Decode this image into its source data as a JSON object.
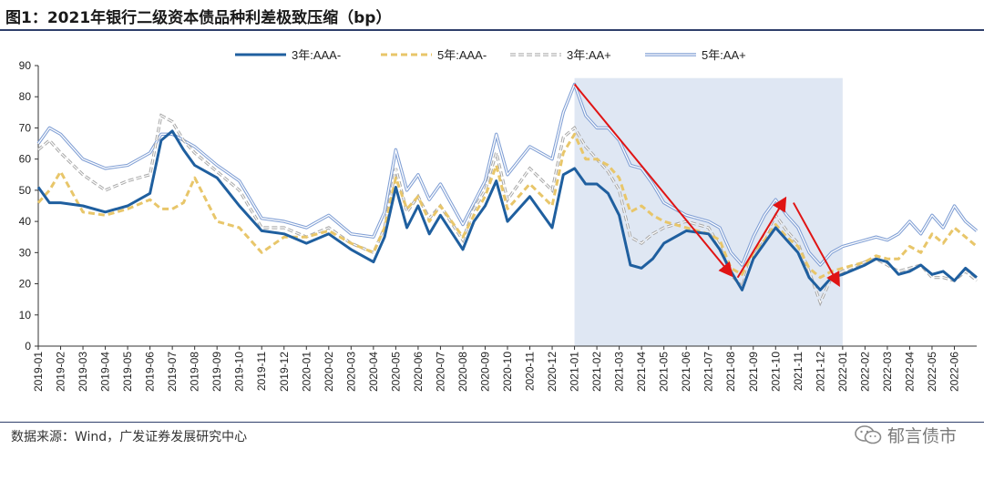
{
  "figure": {
    "title": "图1：2021年银行二级资本债品种利差极致压缩（bp）",
    "source": "数据来源：Wind，广发证券发展研究中心",
    "watermark": "郁言债市"
  },
  "chart_data": {
    "type": "line",
    "title": "2021年银行二级资本债品种利差极致压缩（bp）",
    "xlabel": "",
    "ylabel": "",
    "ylim": [
      0,
      90
    ],
    "yticks": [
      0,
      10,
      20,
      30,
      40,
      50,
      60,
      70,
      80,
      90
    ],
    "x_range_months": [
      0,
      42
    ],
    "categories": [
      "2019-01",
      "2019-02",
      "2019-03",
      "2019-04",
      "2019-05",
      "2019-06",
      "2019-07",
      "2019-08",
      "2019-09",
      "2019-10",
      "2019-11",
      "2019-12",
      "2020-01",
      "2020-02",
      "2020-03",
      "2020-04",
      "2020-05",
      "2020-06",
      "2020-07",
      "2020-08",
      "2020-09",
      "2020-10",
      "2020-11",
      "2020-12",
      "2021-01",
      "2021-02",
      "2021-03",
      "2021-04",
      "2021-05",
      "2021-06",
      "2021-07",
      "2021-08",
      "2021-09",
      "2021-10",
      "2021-11",
      "2021-12",
      "2022-01",
      "2022-02",
      "2022-03",
      "2022-04",
      "2022-05",
      "2022-06"
    ],
    "legend": {
      "position": "top-right"
    },
    "series": [
      {
        "name": "3年:AAA-",
        "color": "#1f5f9f",
        "style": "solid-thick",
        "x": [
          0,
          0.5,
          1,
          2,
          3,
          4,
          5,
          5.5,
          6,
          6.5,
          7,
          8,
          9,
          10,
          11,
          12,
          13,
          14,
          15,
          15.5,
          16,
          16.5,
          17,
          17.5,
          18,
          19,
          19.5,
          20,
          20.5,
          21,
          22,
          23,
          23.5,
          24,
          24.5,
          25,
          25.5,
          26,
          26.5,
          27,
          27.5,
          28,
          29,
          30,
          30.5,
          31,
          31.5,
          32,
          32.5,
          33,
          33.5,
          34,
          34.5,
          35,
          35.5,
          36,
          37,
          37.5,
          38,
          38.5,
          39,
          39.5,
          40,
          40.5,
          41,
          41.5,
          42
        ],
        "y": [
          51,
          46,
          46,
          45,
          43,
          45,
          49,
          66,
          69,
          63,
          58,
          54,
          45,
          37,
          36,
          33,
          36,
          31,
          27,
          35,
          51,
          38,
          45,
          36,
          42,
          31,
          40,
          45,
          53,
          40,
          48,
          38,
          55,
          57,
          52,
          52,
          49,
          42,
          26,
          25,
          28,
          33,
          37,
          36,
          31,
          24,
          18,
          28,
          33,
          38,
          34,
          30,
          22,
          18,
          22,
          23,
          26,
          28,
          27,
          23,
          24,
          26,
          23,
          24,
          21,
          25,
          22
        ]
      },
      {
        "name": "5年:AAA-",
        "color": "#e8c66a",
        "style": "dashed",
        "x": [
          0,
          0.5,
          1,
          2,
          3,
          4,
          5,
          5.5,
          6,
          6.5,
          7,
          8,
          9,
          10,
          11,
          12,
          13,
          14,
          15,
          15.5,
          16,
          16.5,
          17,
          17.5,
          18,
          19,
          19.5,
          20,
          20.5,
          21,
          22,
          23,
          23.5,
          24,
          24.5,
          25,
          25.5,
          26,
          26.5,
          27,
          27.5,
          28,
          29,
          30,
          30.5,
          31,
          31.5,
          32,
          32.5,
          33,
          33.5,
          34,
          34.5,
          35,
          35.5,
          36,
          37,
          37.5,
          38,
          38.5,
          39,
          39.5,
          40,
          40.5,
          41,
          41.5,
          42
        ],
        "y": [
          46,
          50,
          56,
          43,
          42,
          44,
          47,
          44,
          44,
          46,
          54,
          40,
          38,
          30,
          35,
          35,
          37,
          33,
          30,
          38,
          54,
          44,
          48,
          40,
          45,
          35,
          42,
          48,
          58,
          44,
          52,
          45,
          62,
          68,
          60,
          60,
          58,
          54,
          43,
          45,
          42,
          40,
          38,
          36,
          34,
          25,
          23,
          30,
          34,
          39,
          35,
          32,
          25,
          22,
          24,
          25,
          27,
          29,
          28,
          28,
          32,
          30,
          36,
          33,
          38,
          35,
          32
        ]
      },
      {
        "name": "3年:AA+",
        "color": "#a7a7a7",
        "style": "dashed-double",
        "x": [
          0,
          0.5,
          1,
          2,
          3,
          4,
          5,
          5.5,
          6,
          6.5,
          7,
          8,
          9,
          10,
          11,
          12,
          13,
          14,
          15,
          15.5,
          16,
          16.5,
          17,
          17.5,
          18,
          19,
          19.5,
          20,
          20.5,
          21,
          22,
          23,
          23.5,
          24,
          24.5,
          25,
          25.5,
          26,
          26.5,
          27,
          27.5,
          28,
          29,
          30,
          30.5,
          31,
          31.5,
          32,
          32.5,
          33,
          33.5,
          34,
          34.5,
          35,
          35.5,
          36,
          37,
          37.5,
          38,
          38.5,
          39,
          39.5,
          40,
          40.5,
          41,
          41.5,
          42
        ],
        "y": [
          63,
          66,
          62,
          55,
          50,
          53,
          55,
          74,
          72,
          66,
          62,
          56,
          50,
          38,
          38,
          35,
          38,
          33,
          30,
          38,
          57,
          43,
          48,
          41,
          45,
          34,
          44,
          50,
          62,
          47,
          57,
          50,
          67,
          70,
          64,
          60,
          56,
          50,
          35,
          33,
          36,
          38,
          40,
          38,
          32,
          23,
          19,
          30,
          35,
          42,
          37,
          33,
          24,
          14,
          22,
          24,
          27,
          28,
          26,
          24,
          25,
          26,
          22,
          22,
          21,
          24,
          21
        ]
      },
      {
        "name": "5年:AA+",
        "color": "#7f9ed4",
        "style": "double",
        "x": [
          0,
          0.5,
          1,
          2,
          3,
          4,
          5,
          5.5,
          6,
          6.5,
          7,
          8,
          9,
          10,
          11,
          12,
          13,
          14,
          15,
          15.5,
          16,
          16.5,
          17,
          17.5,
          18,
          19,
          19.5,
          20,
          20.5,
          21,
          22,
          23,
          23.5,
          24,
          24.5,
          25,
          25.5,
          26,
          26.5,
          27,
          27.5,
          28,
          29,
          30,
          30.5,
          31,
          31.5,
          32,
          32.5,
          33,
          33.5,
          34,
          34.5,
          35,
          35.5,
          36,
          37,
          37.5,
          38,
          38.5,
          39,
          39.5,
          40,
          40.5,
          41,
          41.5,
          42
        ],
        "y": [
          65,
          70,
          68,
          60,
          57,
          58,
          62,
          68,
          68,
          66,
          64,
          58,
          53,
          41,
          40,
          38,
          42,
          36,
          35,
          43,
          63,
          50,
          55,
          47,
          52,
          39,
          46,
          53,
          68,
          55,
          64,
          60,
          75,
          84,
          74,
          70,
          70,
          66,
          58,
          57,
          52,
          46,
          42,
          40,
          38,
          30,
          26,
          35,
          42,
          47,
          42,
          38,
          30,
          26,
          30,
          32,
          34,
          35,
          34,
          36,
          40,
          36,
          42,
          38,
          45,
          40,
          37
        ]
      }
    ],
    "annotations": {
      "shaded_region": {
        "from": "2021-01",
        "to": "2022-01",
        "color": "#dfe7f3"
      },
      "arrows": [
        {
          "from": [
            24,
            84
          ],
          "to": [
            31,
            23
          ],
          "color": "#e01414"
        },
        {
          "from": [
            31.3,
            22
          ],
          "to": [
            33.4,
            47
          ],
          "color": "#e01414"
        },
        {
          "from": [
            33.8,
            46
          ],
          "to": [
            35.8,
            20
          ],
          "color": "#e01414"
        }
      ]
    }
  }
}
